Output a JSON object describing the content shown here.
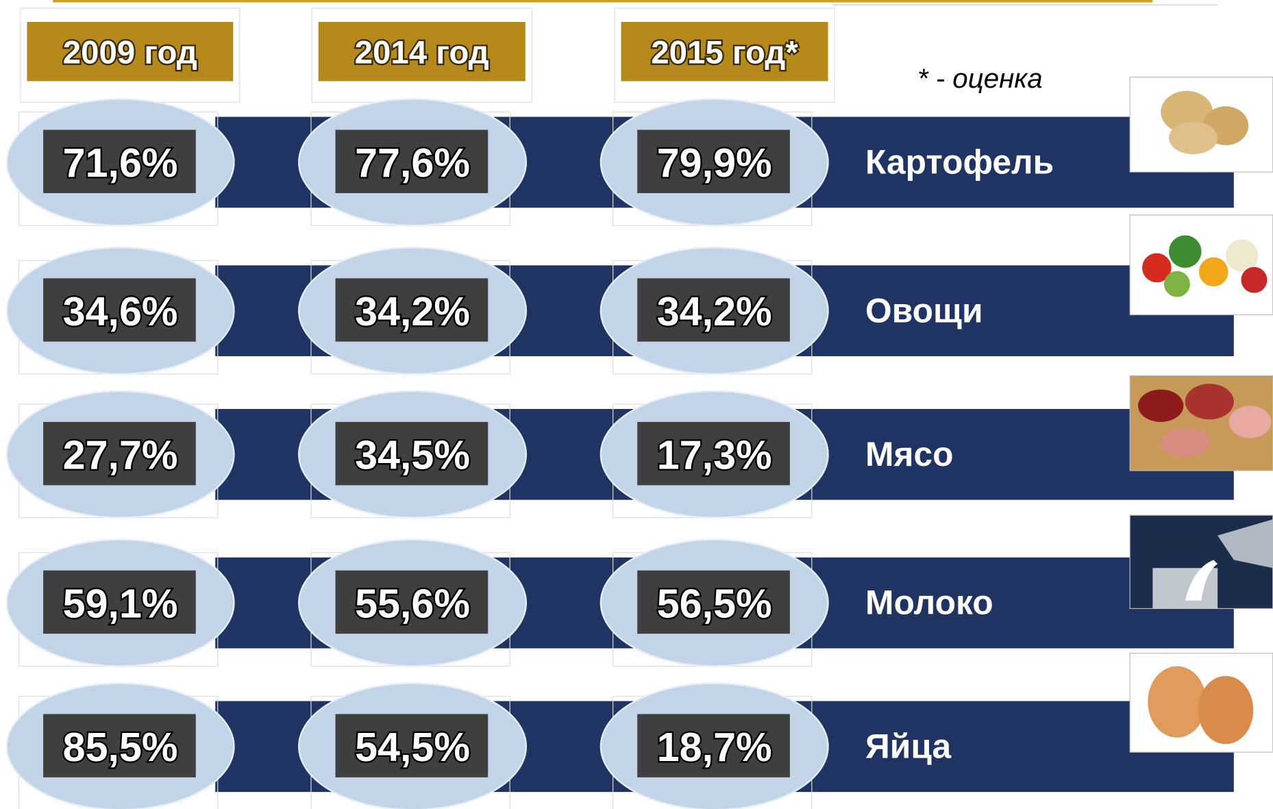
{
  "note": "* - оценка",
  "table": {
    "headers": [
      "2009 год",
      "2014 год",
      "2015 год*"
    ],
    "rows": [
      {
        "name": "Картофель",
        "values": [
          "71,6%",
          "77,6%",
          "79,9%"
        ]
      },
      {
        "name": "Овощи",
        "values": [
          "34,6%",
          "34,2%",
          "34,2%"
        ]
      },
      {
        "name": "Мясо",
        "values": [
          "27,7%",
          "34,5%",
          "17,3%"
        ]
      },
      {
        "name": "Молоко",
        "values": [
          "59,1%",
          "55,6%",
          "56,5%"
        ]
      },
      {
        "name": "Яйца",
        "values": [
          "85,5%",
          "54,5%",
          "18,7%"
        ]
      }
    ]
  }
}
